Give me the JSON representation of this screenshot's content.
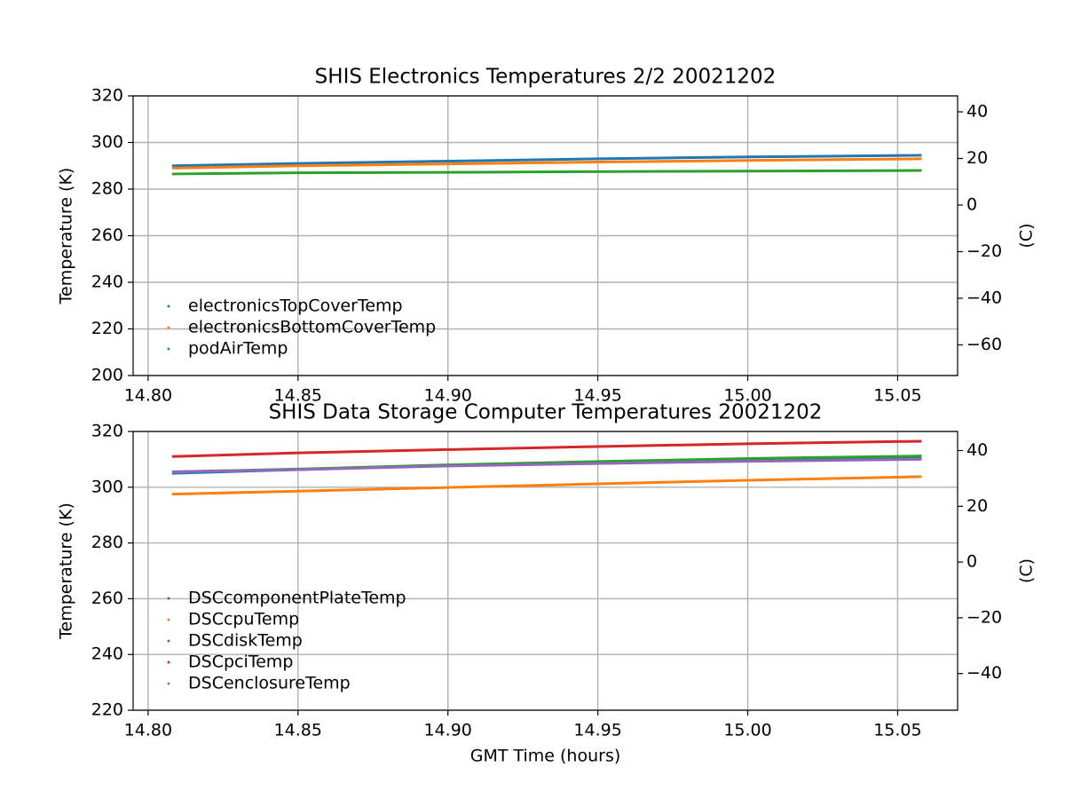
{
  "chart_data": [
    {
      "type": "line",
      "title": "SHIS Electronics Temperatures 2/2 20021202",
      "ylabel": "Temperature (K)",
      "y2label": "(C)",
      "x": [
        14.808,
        14.85,
        14.9,
        14.95,
        15.0,
        15.058
      ],
      "xlim": [
        14.795,
        15.07
      ],
      "xticks": [
        {
          "value": 14.8,
          "label": "14.80"
        },
        14.85,
        {
          "value": 14.9,
          "label": "14.90"
        },
        14.95,
        {
          "value": 15.0,
          "label": "15.00"
        },
        15.05
      ],
      "ylim": [
        200,
        320
      ],
      "yticks": [
        200,
        220,
        240,
        260,
        280,
        300,
        320
      ],
      "y2lim": [
        -73.15,
        46.85
      ],
      "y2ticks": [
        {
          "value": -60,
          "label": "−60"
        },
        {
          "value": -40,
          "label": "−40"
        },
        {
          "value": -20,
          "label": "−20"
        },
        0,
        20,
        40
      ],
      "grid": true,
      "legend": "lower left",
      "series": [
        {
          "name": "electronicsTopCoverTemp",
          "color": "#1f77b4",
          "values": [
            290,
            291,
            292,
            293,
            293.8,
            294.5
          ]
        },
        {
          "name": "electronicsBottomCoverTemp",
          "color": "#ff7f0e",
          "values": [
            289,
            290,
            290.8,
            291.6,
            292.3,
            293
          ]
        },
        {
          "name": "podAirTemp",
          "color": "#2ca02c",
          "values": [
            286.5,
            287,
            287.2,
            287.5,
            287.7,
            288
          ]
        }
      ]
    },
    {
      "type": "line",
      "title": "SHIS Data Storage Computer Temperatures 20021202",
      "ylabel": "Temperature (K)",
      "y2label": "(C)",
      "xlabel": "GMT Time (hours)",
      "x": [
        14.808,
        14.85,
        14.9,
        14.95,
        15.0,
        15.058
      ],
      "xlim": [
        14.795,
        15.07
      ],
      "xticks": [
        {
          "value": 14.8,
          "label": "14.80"
        },
        14.85,
        {
          "value": 14.9,
          "label": "14.90"
        },
        14.95,
        {
          "value": 15.0,
          "label": "15.00"
        },
        15.05
      ],
      "ylim": [
        220,
        320
      ],
      "yticks": [
        220,
        240,
        260,
        280,
        300,
        320
      ],
      "y2lim": [
        -53.15,
        46.85
      ],
      "y2ticks": [
        {
          "value": -40,
          "label": "−40"
        },
        {
          "value": -20,
          "label": "−20"
        },
        0,
        20,
        40
      ],
      "grid": true,
      "legend": "lower left",
      "series": [
        {
          "name": "DSCcomponentPlateTemp",
          "color": "#1f77b4",
          "values": [
            305,
            306.3,
            307.8,
            308.8,
            309.8,
            310.5
          ]
        },
        {
          "name": "DSCcpuTemp",
          "color": "#ff7f0e",
          "values": [
            297.5,
            298.6,
            299.9,
            301.2,
            302.5,
            303.8
          ]
        },
        {
          "name": "DSCdiskTemp",
          "color": "#2ca02c",
          "values": [
            305.5,
            306.5,
            308,
            309.2,
            310.3,
            311.2
          ]
        },
        {
          "name": "DSCpciTemp",
          "color": "#d62728",
          "values": [
            311,
            312.3,
            313.5,
            314.6,
            315.6,
            316.5
          ]
        },
        {
          "name": "DSCenclosureTemp",
          "color": "#9467bd",
          "values": [
            305.5,
            306.3,
            307.6,
            308.5,
            309.3,
            310
          ]
        }
      ]
    }
  ]
}
